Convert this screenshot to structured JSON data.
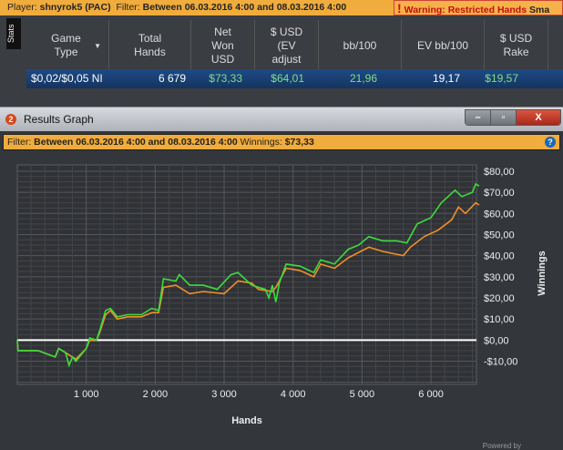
{
  "topbar": {
    "player_label": "Player:",
    "player": "shnyrok5 (PAC)",
    "filter_label": "Filter:",
    "filter": "Between 06.03.2016 4:00 and 08.03.2016 4:00",
    "warning": "Warning: Restricted Hands",
    "warning_tail": "Sma"
  },
  "stats_tab": "Stats",
  "table": {
    "headers": [
      "Game Type",
      "Total Hands",
      "Net Won USD",
      "$ USD (EV adjust",
      "bb/100",
      "EV bb/100",
      "$ USD Rake"
    ],
    "row": [
      "$0,02/$0,05 NI",
      "6 679",
      "$73,33",
      "$64,01",
      "21,96",
      "19,17",
      "$19,57"
    ]
  },
  "window": {
    "title": "Results Graph",
    "icon_num": "2",
    "filter_label": "Filter:",
    "filter": "Between 06.03.2016 4:00 and 08.03.2016 4:00",
    "winnings_label": "Winnings:",
    "winnings": "$73,33",
    "powered": "Powered by"
  },
  "colors": {
    "net_won": "#3ddc3d",
    "ev": "#f0902a",
    "zero_line": "#ffffff",
    "accent": "#f0ac3c"
  },
  "chart_data": {
    "type": "line",
    "xlabel": "Hands",
    "ylabel": "Winnings",
    "xlim": [
      0,
      6660
    ],
    "ylim": [
      -21,
      83
    ],
    "xticks": [
      1000,
      2000,
      3000,
      4000,
      5000,
      6000
    ],
    "xtick_labels": [
      "1 000",
      "2 000",
      "3 000",
      "4 000",
      "5 000",
      "6 000"
    ],
    "yticks": [
      80,
      70,
      60,
      50,
      40,
      30,
      20,
      10,
      0,
      -10
    ],
    "ytick_labels": [
      "$80,00",
      "$70,00",
      "$60,00",
      "$50,00",
      "$40,00",
      "$30,00",
      "$20,00",
      "$10,00",
      "$0,00",
      "-$10,00"
    ],
    "grid": true,
    "series": [
      {
        "color": "#3ddc3d",
        "points": [
          [
            0,
            0
          ],
          [
            10,
            -5
          ],
          [
            300,
            -5
          ],
          [
            550,
            -8
          ],
          [
            600,
            -4
          ],
          [
            700,
            -6
          ],
          [
            750,
            -12
          ],
          [
            800,
            -8
          ],
          [
            850,
            -10
          ],
          [
            1000,
            -4
          ],
          [
            1050,
            1
          ],
          [
            1150,
            0
          ],
          [
            1200,
            5
          ],
          [
            1280,
            14
          ],
          [
            1350,
            15
          ],
          [
            1450,
            11
          ],
          [
            1600,
            12
          ],
          [
            1800,
            12
          ],
          [
            1950,
            15
          ],
          [
            2050,
            14
          ],
          [
            2120,
            29
          ],
          [
            2300,
            28
          ],
          [
            2350,
            31
          ],
          [
            2500,
            26
          ],
          [
            2700,
            26
          ],
          [
            2900,
            24
          ],
          [
            3100,
            31
          ],
          [
            3200,
            32
          ],
          [
            3400,
            26
          ],
          [
            3600,
            24
          ],
          [
            3650,
            20
          ],
          [
            3700,
            26
          ],
          [
            3750,
            18
          ],
          [
            3800,
            27
          ],
          [
            3900,
            36
          ],
          [
            4100,
            35
          ],
          [
            4300,
            32
          ],
          [
            4400,
            38
          ],
          [
            4600,
            36
          ],
          [
            4800,
            43
          ],
          [
            4950,
            45
          ],
          [
            5100,
            49
          ],
          [
            5300,
            47
          ],
          [
            5500,
            47
          ],
          [
            5650,
            46
          ],
          [
            5800,
            55
          ],
          [
            6000,
            58
          ],
          [
            6150,
            65
          ],
          [
            6350,
            71
          ],
          [
            6450,
            68
          ],
          [
            6600,
            70
          ],
          [
            6650,
            74
          ],
          [
            6700,
            73
          ]
        ]
      },
      {
        "color": "#f0902a",
        "points": [
          [
            0,
            0
          ],
          [
            10,
            -5
          ],
          [
            300,
            -5
          ],
          [
            550,
            -8
          ],
          [
            600,
            -4
          ],
          [
            700,
            -6
          ],
          [
            800,
            -8
          ],
          [
            850,
            -9
          ],
          [
            1000,
            -4
          ],
          [
            1050,
            0
          ],
          [
            1150,
            0
          ],
          [
            1200,
            4
          ],
          [
            1280,
            12
          ],
          [
            1350,
            14
          ],
          [
            1450,
            10
          ],
          [
            1600,
            11
          ],
          [
            1800,
            11
          ],
          [
            1950,
            13
          ],
          [
            2050,
            13
          ],
          [
            2120,
            25
          ],
          [
            2300,
            26
          ],
          [
            2500,
            22
          ],
          [
            2700,
            23
          ],
          [
            3000,
            22
          ],
          [
            3200,
            28
          ],
          [
            3400,
            27
          ],
          [
            3500,
            24
          ],
          [
            3700,
            23
          ],
          [
            3750,
            25
          ],
          [
            3800,
            28
          ],
          [
            3900,
            34
          ],
          [
            4100,
            33
          ],
          [
            4300,
            30
          ],
          [
            4400,
            36
          ],
          [
            4600,
            34
          ],
          [
            4800,
            39
          ],
          [
            5100,
            44
          ],
          [
            5300,
            42
          ],
          [
            5600,
            40
          ],
          [
            5700,
            44
          ],
          [
            5900,
            49
          ],
          [
            6100,
            52
          ],
          [
            6300,
            57
          ],
          [
            6400,
            63
          ],
          [
            6500,
            60
          ],
          [
            6650,
            65
          ],
          [
            6700,
            64
          ]
        ]
      }
    ]
  }
}
